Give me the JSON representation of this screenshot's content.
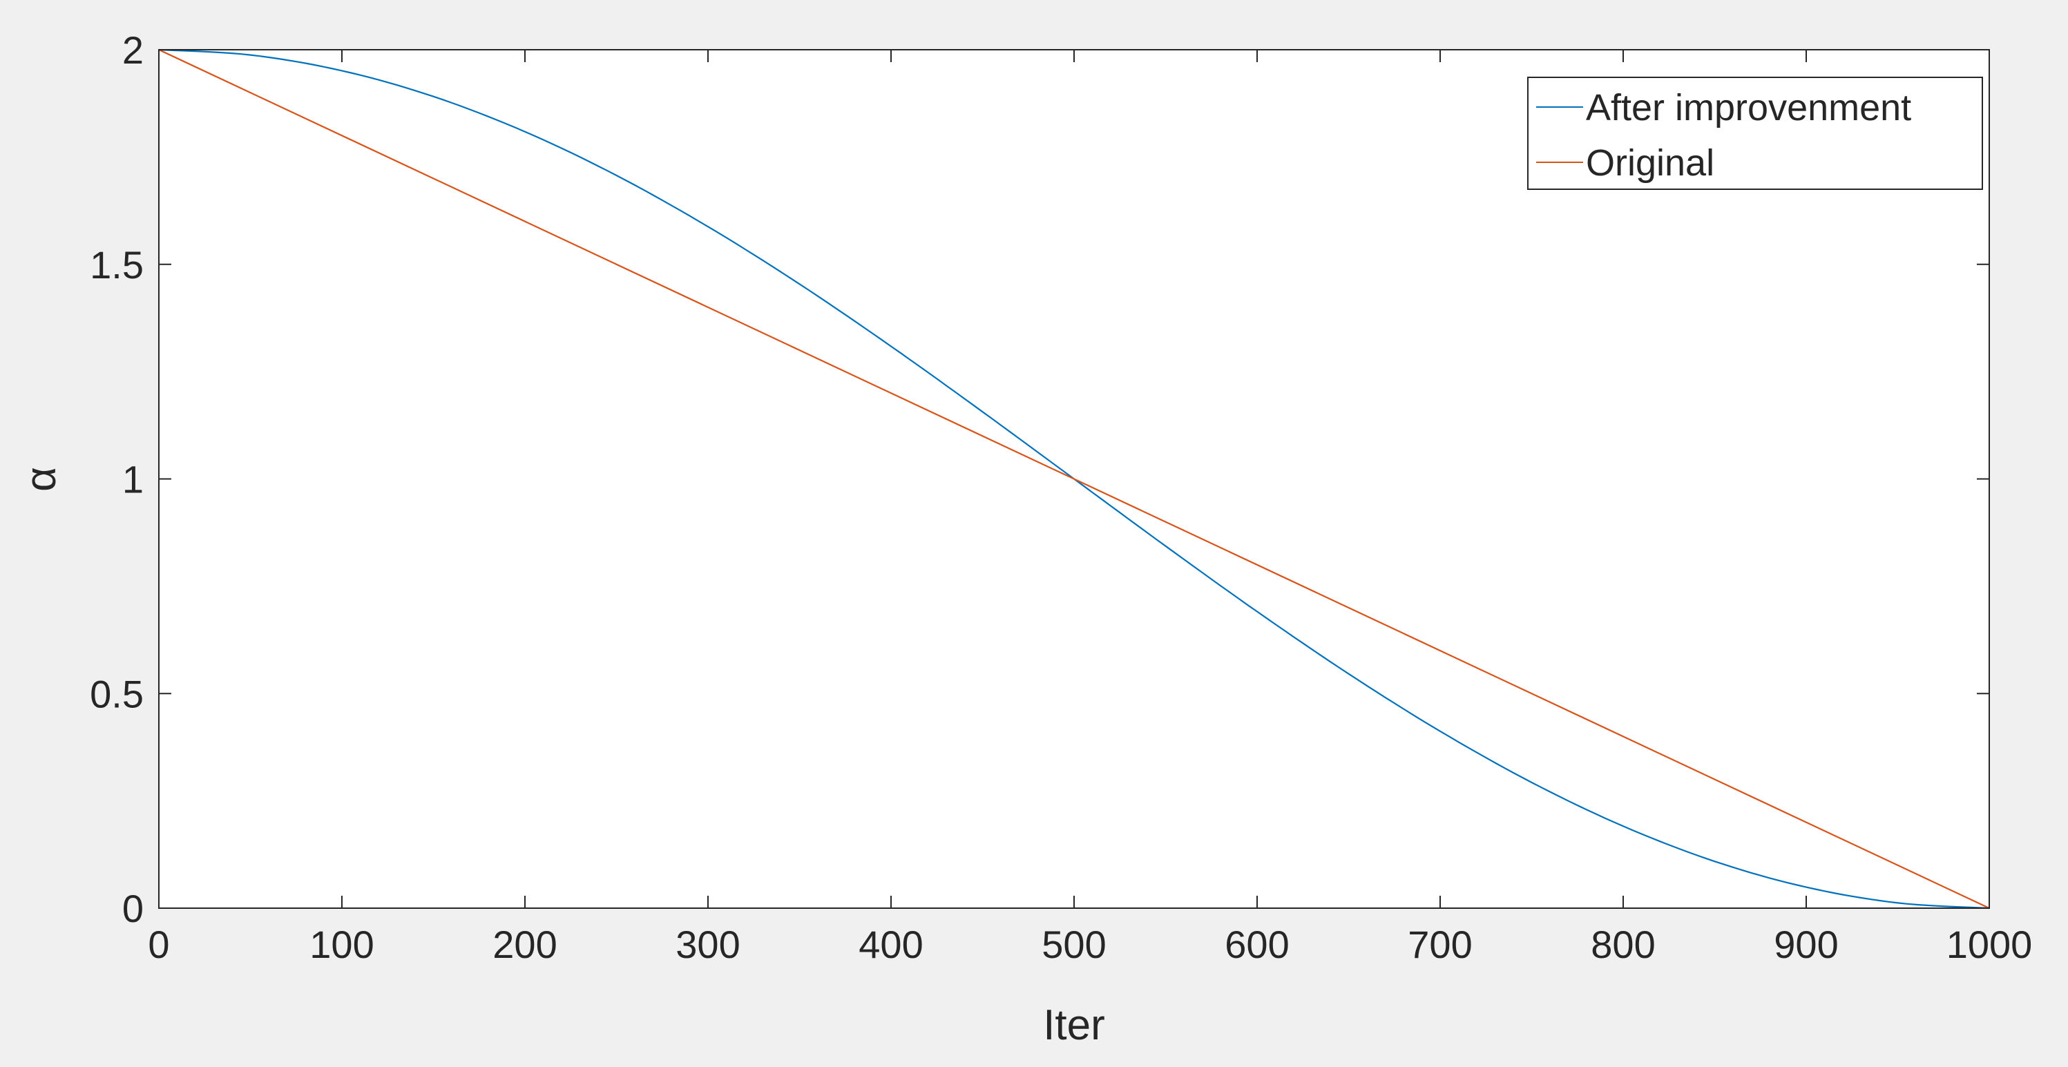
{
  "chart_data": {
    "type": "line",
    "xlabel": "Iter",
    "ylabel": "α",
    "xlim": [
      0,
      1000
    ],
    "ylim": [
      0,
      2
    ],
    "x_ticks": [
      0,
      100,
      200,
      300,
      400,
      500,
      600,
      700,
      800,
      900,
      1000
    ],
    "x_tick_labels": [
      "0",
      "100",
      "200",
      "300",
      "400",
      "500",
      "600",
      "700",
      "800",
      "900",
      "1000"
    ],
    "y_ticks": [
      0,
      0.5,
      1,
      1.5,
      2
    ],
    "y_tick_labels": [
      "0",
      "0.5",
      "1",
      "1.5",
      "2"
    ],
    "grid": false,
    "box": true,
    "legend_position": "top-right",
    "series": [
      {
        "name": "After improvenment",
        "color": "#0072BD",
        "x": [
          0,
          50,
          100,
          150,
          200,
          250,
          300,
          350,
          400,
          450,
          500,
          550,
          600,
          650,
          700,
          750,
          800,
          850,
          900,
          950,
          1000
        ],
        "y": [
          2.0,
          1.9877,
          1.9511,
          1.891,
          1.809,
          1.7071,
          1.5878,
          1.454,
          1.309,
          1.1564,
          1.0,
          0.8436,
          0.691,
          0.546,
          0.4122,
          0.2929,
          0.191,
          0.109,
          0.0489,
          0.0123,
          0.0
        ]
      },
      {
        "name": "Original",
        "color": "#D95319",
        "x": [
          0,
          1000
        ],
        "y": [
          2.0,
          0.0
        ]
      }
    ]
  }
}
